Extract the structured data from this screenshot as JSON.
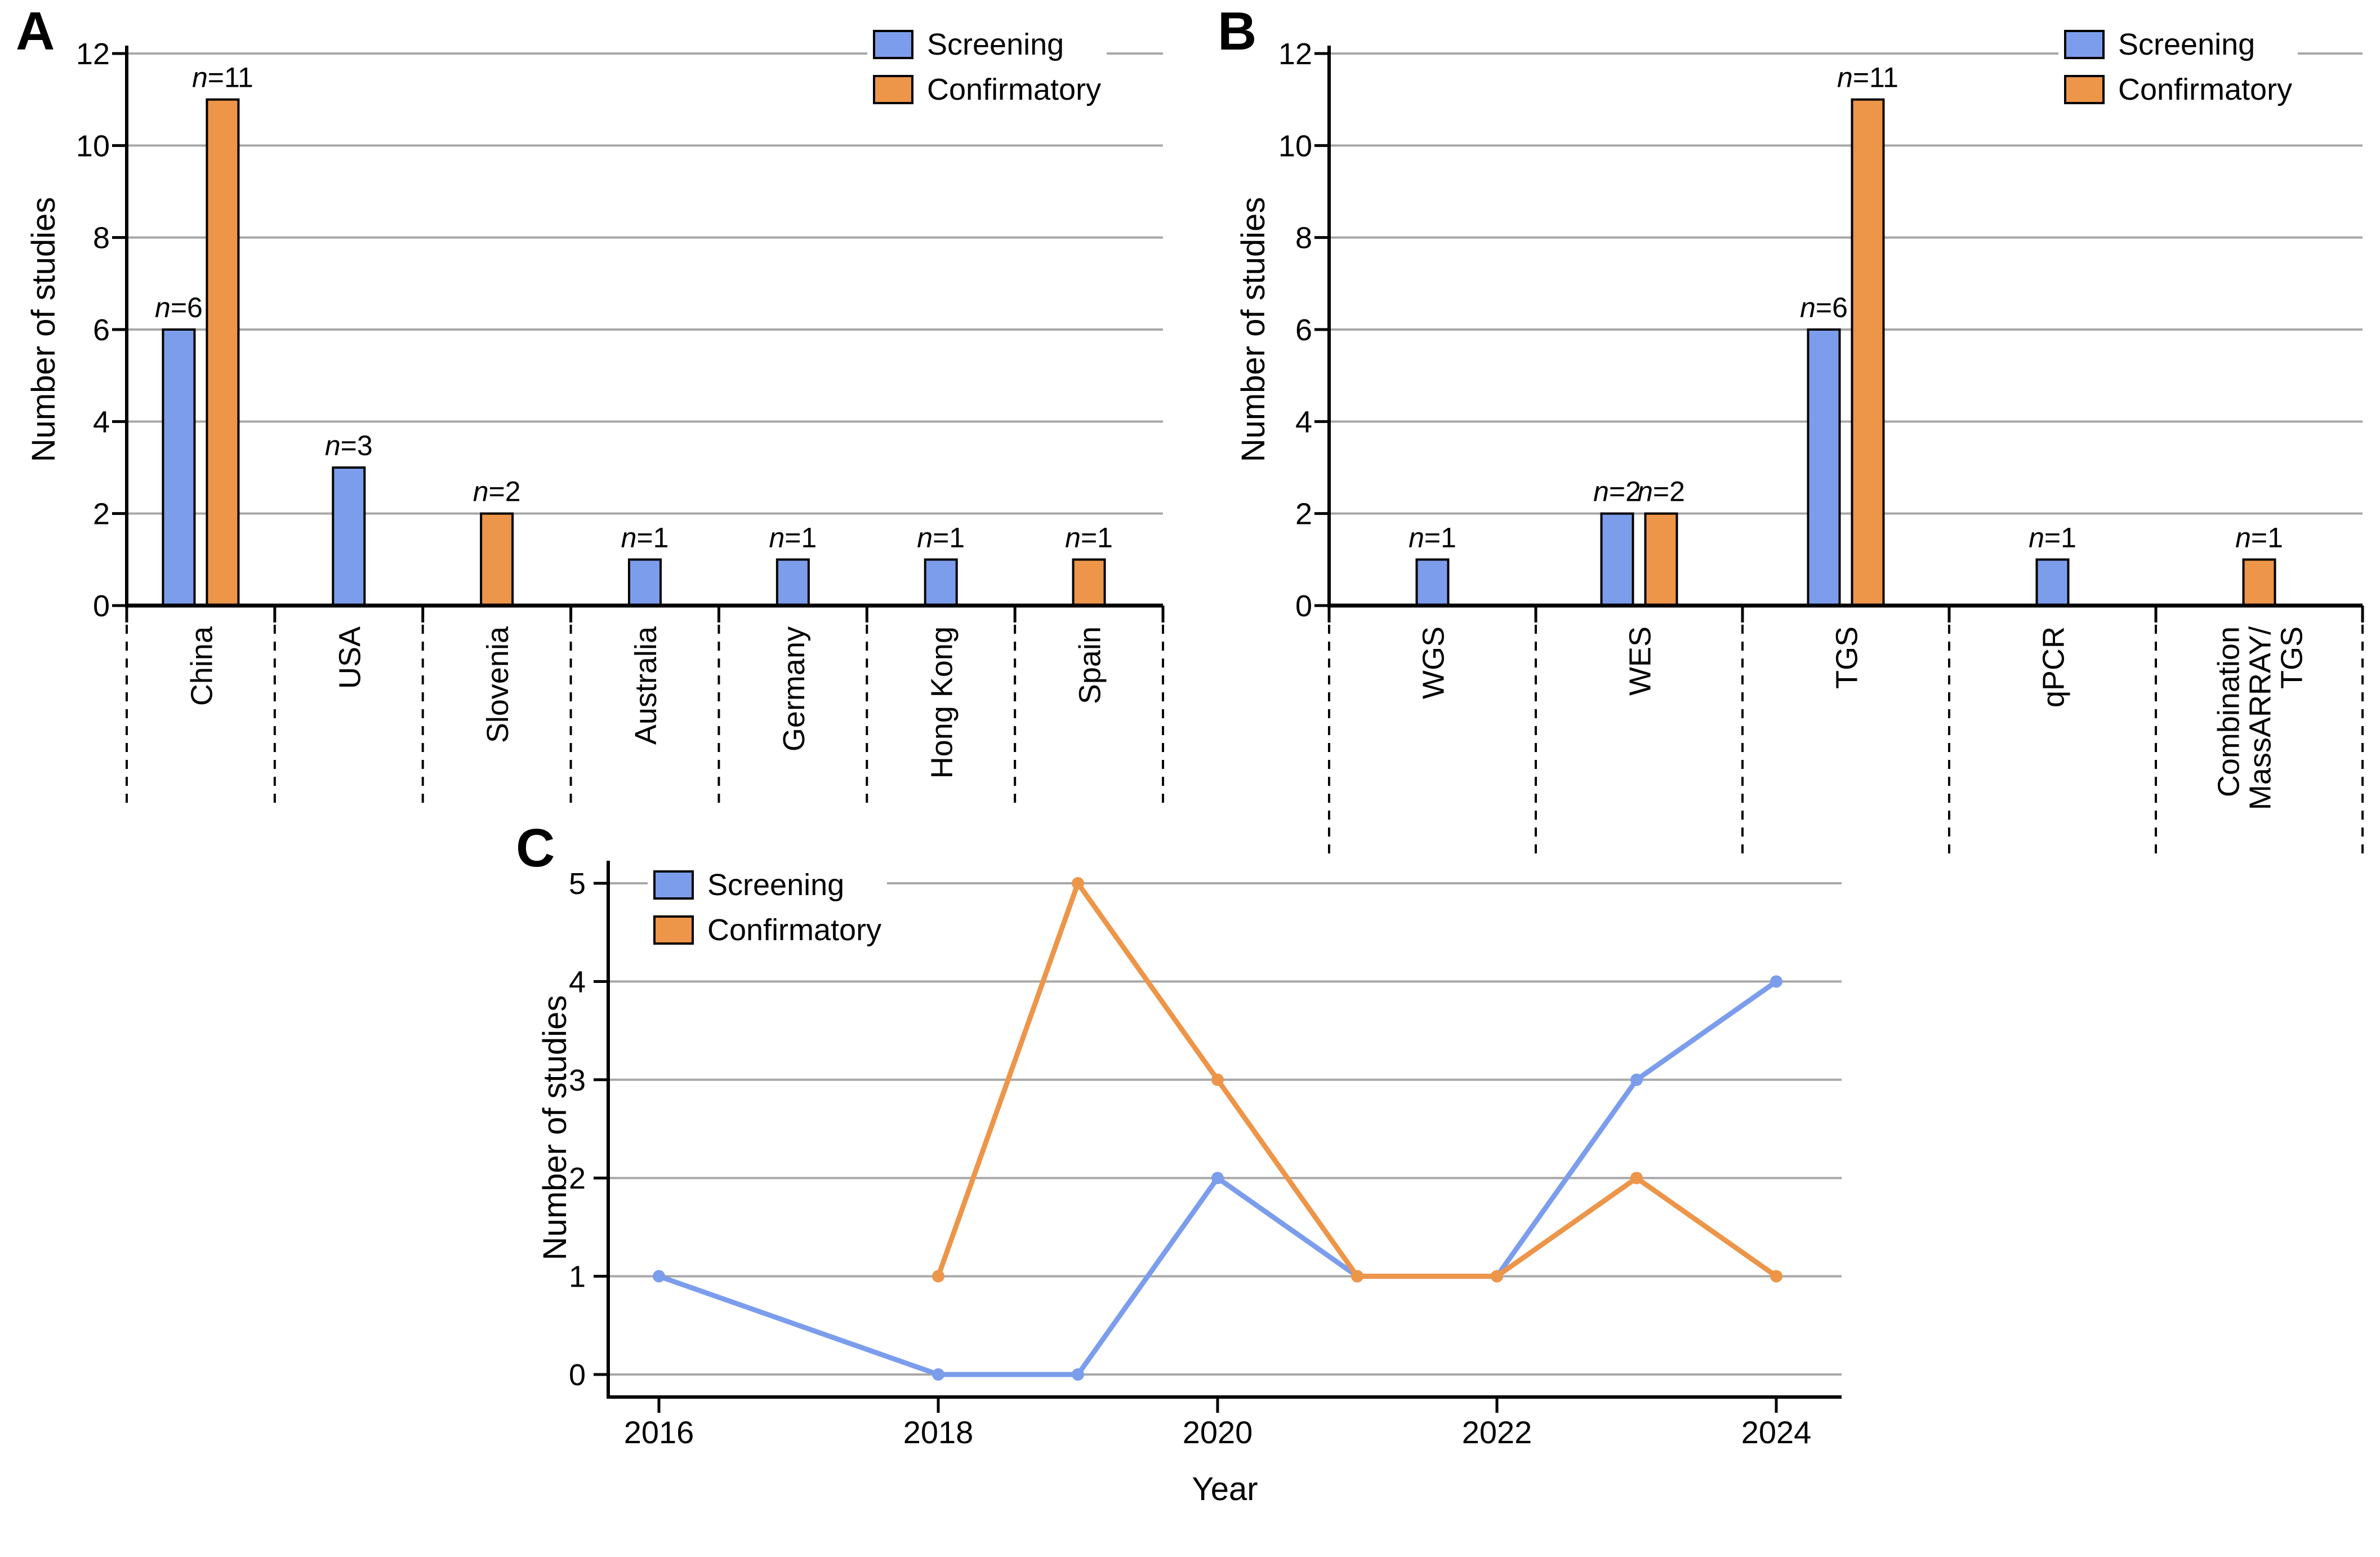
{
  "figure": {
    "panel_labels": {
      "a": "A",
      "b": "B",
      "c": "C"
    }
  },
  "colors": {
    "screening": "#7B9DEC",
    "confirmatory": "#ED9549",
    "grid": "#A8A8A8",
    "axis": "#000000",
    "background": "#FFFFFF"
  },
  "legend": {
    "screening_label": "Screening",
    "confirmatory_label": "Confirmatory"
  },
  "axis_titles": {
    "y_label": "Number of studies",
    "c_x_label": "Year"
  },
  "chart_data": [
    {
      "panel": "A",
      "type": "bar",
      "categories": [
        "China",
        "USA",
        "Slovenia",
        "Australia",
        "Germany",
        "Hong Kong",
        "Spain"
      ],
      "series": [
        {
          "name": "Screening",
          "values": [
            6,
            3,
            0,
            1,
            1,
            1,
            0
          ]
        },
        {
          "name": "Confirmatory",
          "values": [
            11,
            0,
            2,
            0,
            0,
            0,
            1
          ]
        }
      ],
      "bar_labels": [
        [
          "n=6",
          "n=11"
        ],
        [
          "n=3",
          ""
        ],
        [
          "",
          "n=2"
        ],
        [
          "n=1",
          ""
        ],
        [
          "n=1",
          ""
        ],
        [
          "n=1",
          ""
        ],
        [
          "",
          "n=1"
        ]
      ],
      "ylabel": "Number of studies",
      "ylim": [
        0,
        12
      ],
      "yticks": [
        0,
        2,
        4,
        6,
        8,
        10,
        12
      ],
      "legend_position": "top-right",
      "grid": true
    },
    {
      "panel": "B",
      "type": "bar",
      "categories": [
        "WGS",
        "WES",
        "TGS",
        "qPCR",
        "Combination\nMassARRAY/\nTGS"
      ],
      "series": [
        {
          "name": "Screening",
          "values": [
            1,
            2,
            6,
            1,
            0
          ]
        },
        {
          "name": "Confirmatory",
          "values": [
            0,
            2,
            11,
            0,
            1
          ]
        }
      ],
      "bar_labels": [
        [
          "n=1",
          ""
        ],
        [
          "n=2",
          "n=2"
        ],
        [
          "n=6",
          "n=11"
        ],
        [
          "n=1",
          ""
        ],
        [
          "",
          "n=1"
        ]
      ],
      "ylabel": "Number of studies",
      "ylim": [
        0,
        12
      ],
      "yticks": [
        0,
        2,
        4,
        6,
        8,
        10,
        12
      ],
      "legend_position": "top-right",
      "grid": true
    },
    {
      "panel": "C",
      "type": "line",
      "xlabel": "Year",
      "ylabel": "Number of studies",
      "ylim": [
        0,
        5
      ],
      "yticks": [
        0,
        1,
        2,
        3,
        4,
        5
      ],
      "xticks": [
        2016,
        2018,
        2020,
        2022,
        2024
      ],
      "xrange": [
        2016,
        2024
      ],
      "series": [
        {
          "name": "Screening",
          "x": [
            2016,
            2018,
            2019,
            2020,
            2021,
            2022,
            2023,
            2024
          ],
          "y": [
            1,
            0,
            0,
            2,
            1,
            1,
            3,
            4
          ]
        },
        {
          "name": "Confirmatory",
          "x": [
            2018,
            2019,
            2020,
            2021,
            2022,
            2023,
            2024
          ],
          "y": [
            1,
            5,
            3,
            1,
            1,
            2,
            1
          ]
        }
      ],
      "legend_position": "top-left",
      "grid": true
    }
  ]
}
